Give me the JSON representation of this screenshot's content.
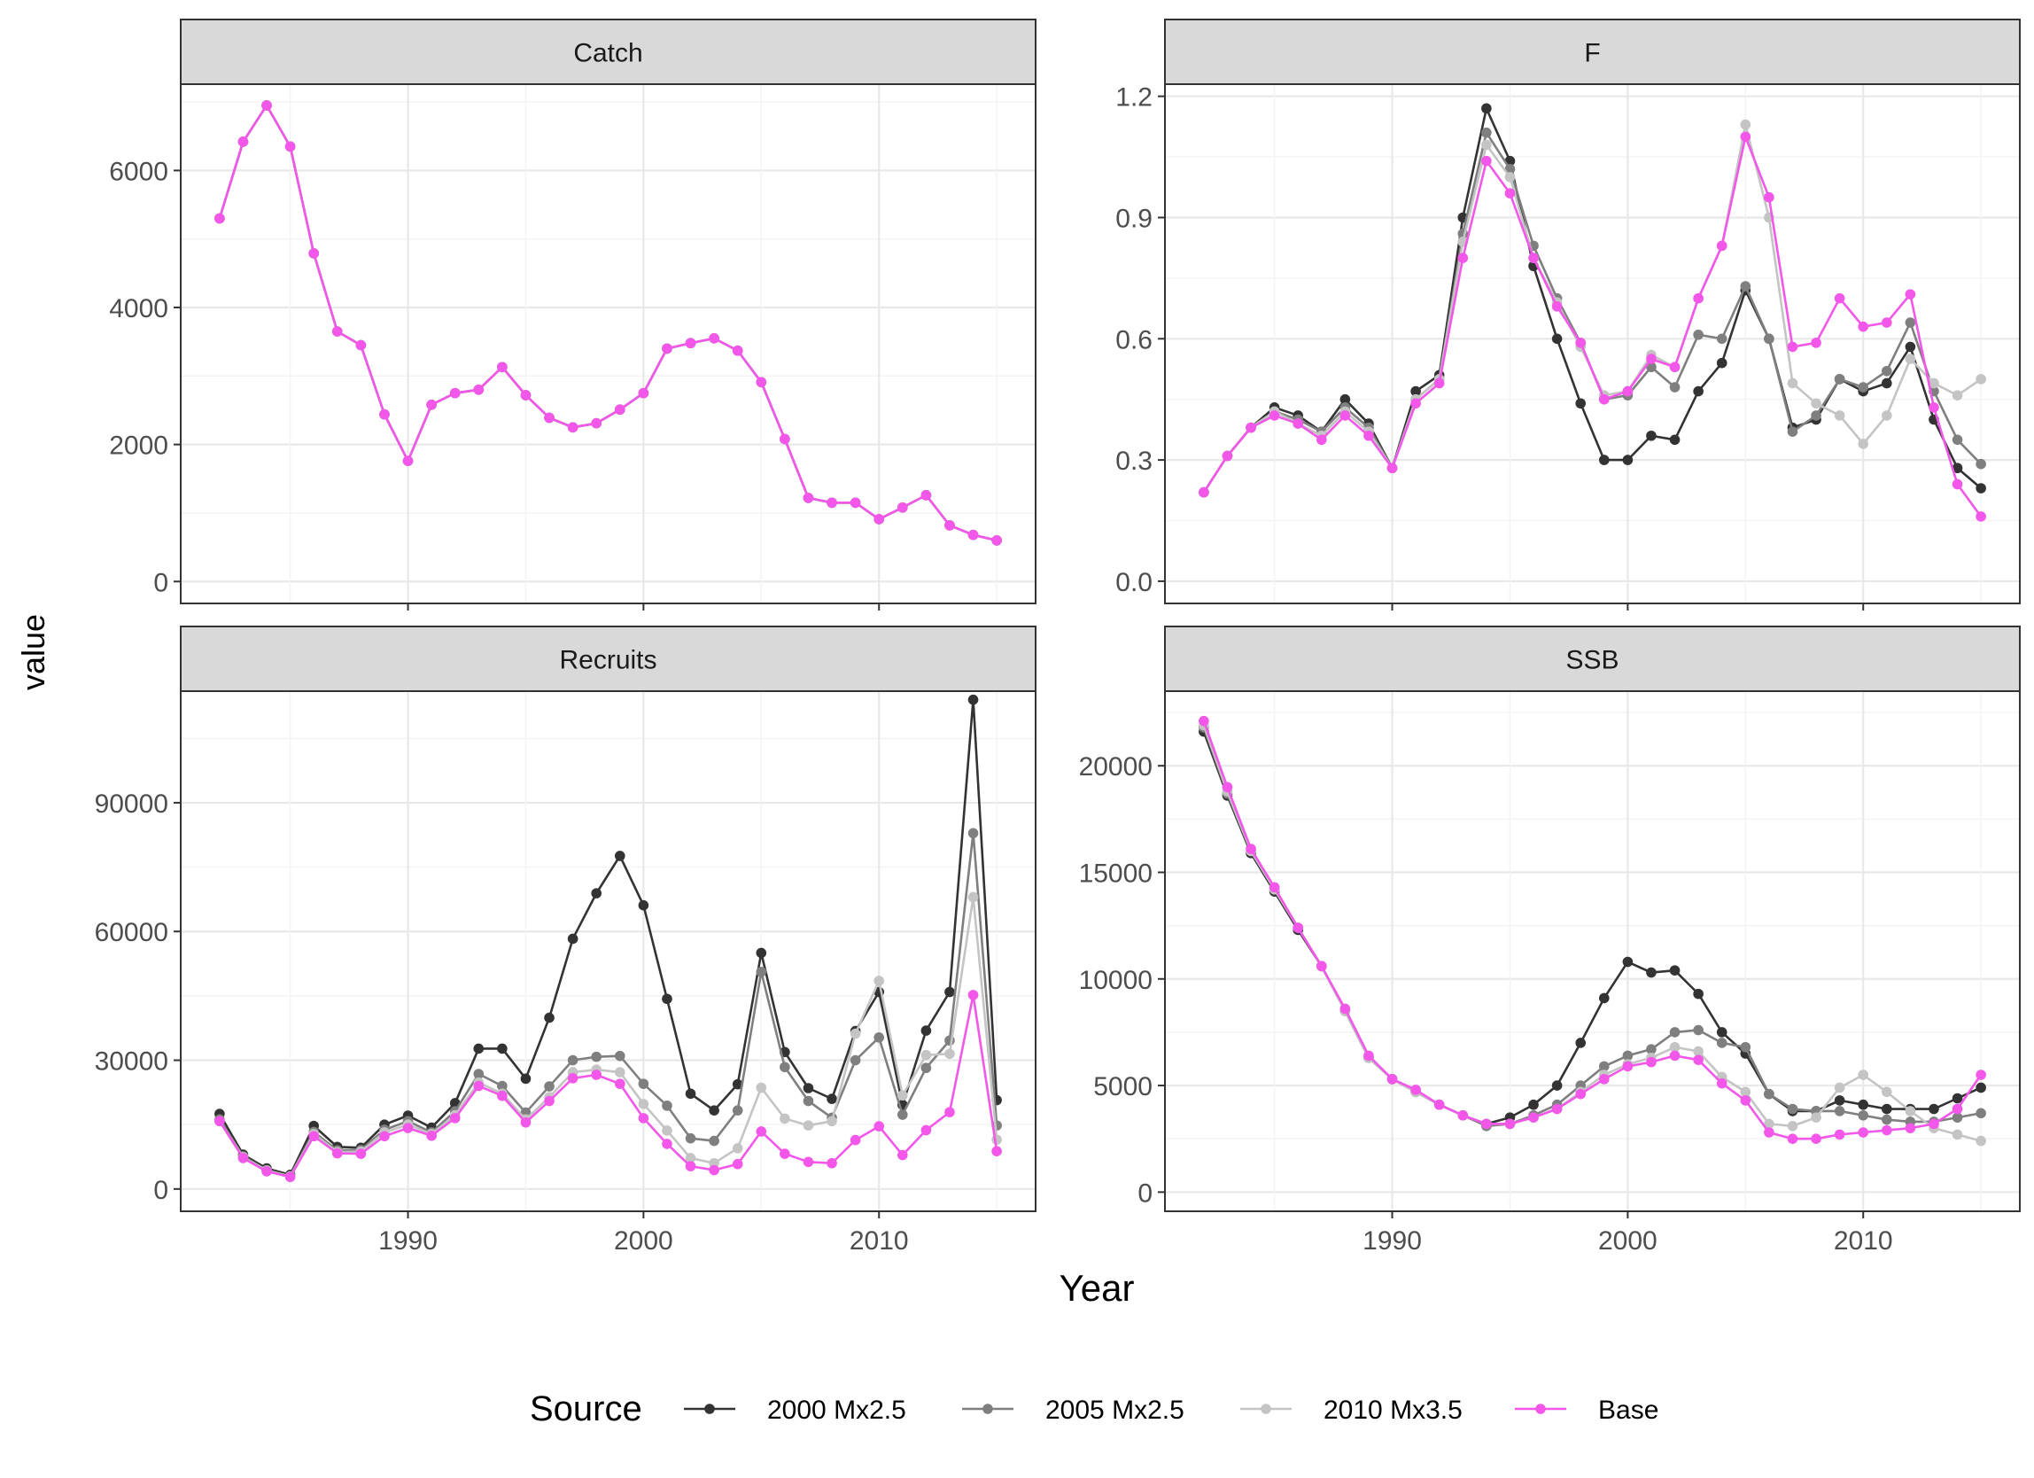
{
  "figure": {
    "y_title": "value",
    "x_title": "Year",
    "legend_title": "Source"
  },
  "colors": {
    "2000 Mx2.5": "#333333",
    "2005 Mx2.5": "#7f7f7f",
    "2010 Mx3.5": "#c4c4c4",
    "Base": "#f257e9",
    "strip_bg": "#d9d9d9",
    "grid_major": "#e8e8e8",
    "grid_minor": "#f3f3f3",
    "tick_text": "#4d4d4d"
  },
  "chart_data": [
    {
      "type": "line",
      "title": "Catch",
      "xlabel": "Year",
      "ylabel": "value",
      "ylim": [
        -320,
        7260
      ],
      "yticks": [
        "0",
        "2000",
        "4000",
        "6000"
      ],
      "xticks": [
        "1990",
        "2000",
        "2010"
      ],
      "x": [
        1982,
        1983,
        1984,
        1985,
        1986,
        1987,
        1988,
        1989,
        1990,
        1991,
        1992,
        1993,
        1994,
        1995,
        1996,
        1997,
        1998,
        1999,
        2000,
        2001,
        2002,
        2003,
        2004,
        2005,
        2006,
        2007,
        2008,
        2009,
        2010,
        2011,
        2012,
        2013,
        2014,
        2015
      ],
      "series": [
        {
          "name": "2000 Mx2.5",
          "values": [
            5300,
            6420,
            6950,
            6350,
            4790,
            3650,
            3450,
            2440,
            1760,
            2580,
            2750,
            2800,
            3130,
            2720,
            2390,
            2250,
            2310,
            2510,
            2750,
            3400,
            3480,
            3550,
            3370,
            2910,
            2080,
            1220,
            1150,
            1150,
            910,
            1080,
            1260,
            820,
            680,
            600
          ]
        },
        {
          "name": "2005 Mx2.5",
          "values": [
            5300,
            6420,
            6950,
            6350,
            4790,
            3650,
            3450,
            2440,
            1760,
            2580,
            2750,
            2800,
            3130,
            2720,
            2390,
            2250,
            2310,
            2510,
            2750,
            3400,
            3480,
            3550,
            3370,
            2910,
            2080,
            1220,
            1150,
            1150,
            910,
            1080,
            1260,
            820,
            680,
            600
          ]
        },
        {
          "name": "2010 Mx3.5",
          "values": [
            5300,
            6420,
            6950,
            6350,
            4790,
            3650,
            3450,
            2440,
            1760,
            2580,
            2750,
            2800,
            3130,
            2720,
            2390,
            2250,
            2310,
            2510,
            2750,
            3400,
            3480,
            3550,
            3370,
            2910,
            2080,
            1220,
            1150,
            1150,
            910,
            1080,
            1260,
            820,
            680,
            600
          ]
        },
        {
          "name": "Base",
          "values": [
            5300,
            6420,
            6950,
            6350,
            4790,
            3650,
            3450,
            2440,
            1760,
            2580,
            2750,
            2800,
            3130,
            2720,
            2390,
            2250,
            2310,
            2510,
            2750,
            3400,
            3480,
            3550,
            3370,
            2910,
            2080,
            1220,
            1150,
            1150,
            910,
            1080,
            1260,
            820,
            680,
            600
          ]
        }
      ]
    },
    {
      "type": "line",
      "title": "F",
      "xlabel": "Year",
      "ylabel": "value",
      "ylim": [
        -0.055,
        1.23
      ],
      "yticks": [
        "0.0",
        "0.3",
        "0.6",
        "0.9",
        "1.2"
      ],
      "xticks": [
        "1990",
        "2000",
        "2010"
      ],
      "x": [
        1982,
        1983,
        1984,
        1985,
        1986,
        1987,
        1988,
        1989,
        1990,
        1991,
        1992,
        1993,
        1994,
        1995,
        1996,
        1997,
        1998,
        1999,
        2000,
        2001,
        2002,
        2003,
        2004,
        2005,
        2006,
        2007,
        2008,
        2009,
        2010,
        2011,
        2012,
        2013,
        2014,
        2015
      ],
      "series": [
        {
          "name": "2000 Mx2.5",
          "values": [
            0.22,
            0.31,
            0.38,
            0.43,
            0.41,
            0.37,
            0.45,
            0.39,
            0.28,
            0.47,
            0.51,
            0.9,
            1.17,
            1.04,
            0.78,
            0.6,
            0.44,
            0.3,
            0.3,
            0.36,
            0.35,
            0.47,
            0.54,
            0.72,
            0.6,
            0.38,
            0.4,
            0.5,
            0.47,
            0.49,
            0.58,
            0.4,
            0.28,
            0.23
          ]
        },
        {
          "name": "2005 Mx2.5",
          "values": [
            0.22,
            0.31,
            0.38,
            0.42,
            0.4,
            0.37,
            0.43,
            0.38,
            0.28,
            0.45,
            0.5,
            0.86,
            1.11,
            1.02,
            0.83,
            0.7,
            0.59,
            0.45,
            0.46,
            0.53,
            0.48,
            0.61,
            0.6,
            0.73,
            0.6,
            0.37,
            0.41,
            0.5,
            0.48,
            0.52,
            0.64,
            0.47,
            0.35,
            0.29
          ]
        },
        {
          "name": "2010 Mx3.5",
          "values": [
            0.22,
            0.31,
            0.38,
            0.42,
            0.39,
            0.36,
            0.42,
            0.37,
            0.28,
            0.45,
            0.5,
            0.84,
            1.08,
            1.0,
            0.8,
            0.69,
            0.58,
            0.46,
            0.47,
            0.56,
            0.53,
            0.7,
            0.83,
            1.13,
            0.9,
            0.49,
            0.44,
            0.41,
            0.34,
            0.41,
            0.55,
            0.49,
            0.46,
            0.5
          ]
        },
        {
          "name": "Base",
          "values": [
            0.22,
            0.31,
            0.38,
            0.41,
            0.39,
            0.35,
            0.41,
            0.36,
            0.28,
            0.44,
            0.49,
            0.8,
            1.04,
            0.96,
            0.8,
            0.68,
            0.59,
            0.45,
            0.47,
            0.55,
            0.53,
            0.7,
            0.83,
            1.1,
            0.95,
            0.58,
            0.59,
            0.7,
            0.63,
            0.64,
            0.71,
            0.43,
            0.24,
            0.16
          ]
        }
      ]
    },
    {
      "type": "line",
      "title": "Recruits",
      "xlabel": "Year",
      "ylabel": "value",
      "ylim": [
        -5200,
        116000
      ],
      "yticks": [
        "0",
        "30000",
        "60000",
        "90000"
      ],
      "xticks": [
        "1990",
        "2000",
        "2010"
      ],
      "x": [
        1982,
        1983,
        1984,
        1985,
        1986,
        1987,
        1988,
        1989,
        1990,
        1991,
        1992,
        1993,
        1994,
        1995,
        1996,
        1997,
        1998,
        1999,
        2000,
        2001,
        2002,
        2003,
        2004,
        2005,
        2006,
        2007,
        2008,
        2009,
        2010,
        2011,
        2012,
        2013,
        2014,
        2015
      ],
      "series": [
        {
          "name": "2000 Mx2.5",
          "values": [
            17500,
            8000,
            4800,
            3300,
            14700,
            9800,
            9600,
            15000,
            17100,
            14300,
            20000,
            32700,
            32700,
            25700,
            39900,
            58300,
            68900,
            77600,
            66100,
            44300,
            22200,
            18300,
            24400,
            55000,
            31900,
            23500,
            21000,
            36800,
            45900,
            19600,
            36900,
            45900,
            114000,
            20700
          ]
        },
        {
          "name": "2005 Mx2.5",
          "values": [
            16200,
            7600,
            4400,
            3000,
            13300,
            9000,
            9100,
            13800,
            15800,
            13200,
            18100,
            26800,
            24000,
            17800,
            23900,
            30000,
            30800,
            31000,
            24500,
            19400,
            11800,
            11200,
            18300,
            50600,
            28400,
            20500,
            16600,
            30000,
            35300,
            17300,
            28200,
            34600,
            82900,
            14800
          ]
        },
        {
          "name": "2010 Mx3.5",
          "values": [
            15800,
            7400,
            4300,
            2900,
            12800,
            8600,
            8700,
            13200,
            15000,
            12800,
            17200,
            24800,
            22200,
            16200,
            21400,
            27200,
            27800,
            27200,
            19800,
            13600,
            7200,
            6000,
            9500,
            23600,
            16400,
            14800,
            15800,
            36200,
            48500,
            21800,
            31200,
            31500,
            68000,
            11500
          ]
        },
        {
          "name": "Base",
          "values": [
            15800,
            7200,
            4100,
            2800,
            12300,
            8300,
            8200,
            12300,
            14200,
            12400,
            16500,
            24000,
            21700,
            15500,
            20500,
            25800,
            26600,
            24500,
            16500,
            10500,
            5300,
            4400,
            5800,
            13400,
            8200,
            6300,
            6000,
            11400,
            14600,
            7900,
            13700,
            17900,
            45200,
            8800
          ]
        }
      ]
    },
    {
      "type": "line",
      "title": "SSB",
      "xlabel": "Year",
      "ylabel": "value",
      "ylim": [
        -900,
        23500
      ],
      "yticks": [
        "0",
        "5000",
        "10000",
        "15000",
        "20000"
      ],
      "xticks": [
        "1990",
        "2000",
        "2010"
      ],
      "x": [
        1982,
        1983,
        1984,
        1985,
        1986,
        1987,
        1988,
        1989,
        1990,
        1991,
        1992,
        1993,
        1994,
        1995,
        1996,
        1997,
        1998,
        1999,
        2000,
        2001,
        2002,
        2003,
        2004,
        2005,
        2006,
        2007,
        2008,
        2009,
        2010,
        2011,
        2012,
        2013,
        2014,
        2015
      ],
      "series": [
        {
          "name": "2000 Mx2.5",
          "values": [
            21600,
            18600,
            15900,
            14100,
            12300,
            10600,
            8500,
            6300,
            5300,
            4700,
            4100,
            3600,
            3200,
            3500,
            4100,
            5000,
            7000,
            9100,
            10800,
            10300,
            10400,
            9300,
            7500,
            6500,
            4600,
            3800,
            3800,
            4300,
            4100,
            3900,
            3900,
            3900,
            4400,
            4900
          ]
        },
        {
          "name": "2005 Mx2.5",
          "values": [
            21800,
            18700,
            16000,
            14200,
            12400,
            10600,
            8500,
            6300,
            5300,
            4700,
            4100,
            3600,
            3100,
            3200,
            3600,
            4100,
            5000,
            5900,
            6400,
            6700,
            7500,
            7600,
            7000,
            6800,
            4600,
            3900,
            3800,
            3800,
            3600,
            3400,
            3300,
            3300,
            3500,
            3700
          ]
        },
        {
          "name": "2010 Mx3.5",
          "values": [
            21900,
            18800,
            16000,
            14200,
            12400,
            10600,
            8500,
            6300,
            5300,
            4700,
            4100,
            3600,
            3200,
            3200,
            3500,
            3900,
            4700,
            5500,
            6000,
            6300,
            6800,
            6600,
            5400,
            4700,
            3200,
            3100,
            3500,
            4900,
            5500,
            4700,
            3800,
            3000,
            2700,
            2400
          ]
        },
        {
          "name": "Base",
          "values": [
            22100,
            19000,
            16100,
            14300,
            12400,
            10600,
            8600,
            6400,
            5300,
            4800,
            4100,
            3600,
            3200,
            3200,
            3500,
            3900,
            4600,
            5300,
            5900,
            6100,
            6400,
            6200,
            5100,
            4300,
            2800,
            2500,
            2500,
            2700,
            2800,
            2900,
            3000,
            3200,
            3900,
            5500
          ]
        }
      ]
    }
  ],
  "legend": {
    "items": [
      {
        "label": "2000 Mx2.5"
      },
      {
        "label": "2005 Mx2.5"
      },
      {
        "label": "2010 Mx3.5"
      },
      {
        "label": "Base"
      }
    ]
  }
}
